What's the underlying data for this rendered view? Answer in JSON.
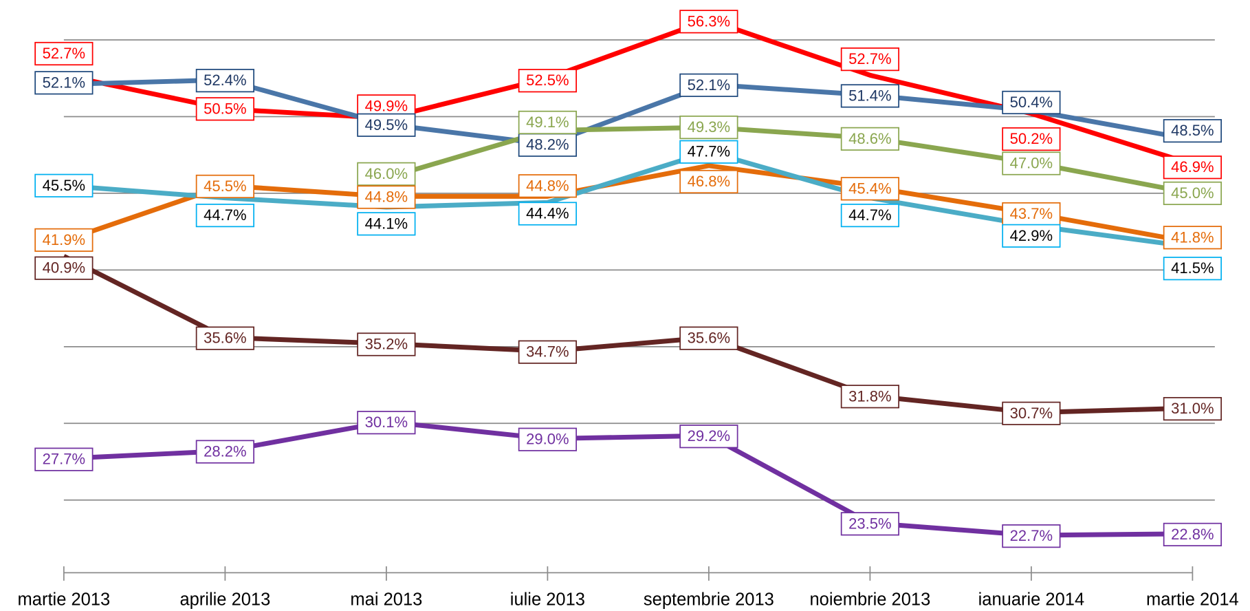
{
  "chart_data": {
    "type": "line",
    "categories": [
      "martie 2013",
      "aprilie 2013",
      "mai 2013",
      "iulie 2013",
      "septembrie 2013",
      "noiembrie 2013",
      "ianuarie 2014",
      "martie 2014"
    ],
    "ylim": [
      20,
      57.5
    ],
    "yticks": [
      20,
      25,
      30,
      35,
      40,
      45,
      50,
      55
    ],
    "grid": true,
    "series": [
      {
        "color": "#ff0000",
        "values": [
          52.7,
          50.5,
          49.9,
          52.5,
          56.3,
          52.7,
          50.2,
          46.9
        ],
        "value_labels": [
          "52.7%",
          "50.5%",
          "49.9%",
          "52.5%",
          "56.3%",
          "52.7%",
          "50.2%",
          "46.9%"
        ]
      },
      {
        "color": "#4a76a8",
        "values": [
          52.1,
          52.4,
          49.5,
          48.2,
          52.1,
          51.4,
          50.4,
          48.5
        ],
        "value_labels": [
          "52.1%",
          "52.4%",
          "49.5%",
          "48.2%",
          "52.1%",
          "51.4%",
          "50.4%",
          "48.5%"
        ]
      },
      {
        "color": "#8aa64f",
        "values": [
          null,
          null,
          46.0,
          49.1,
          49.3,
          48.6,
          47.0,
          45.0
        ],
        "value_labels": [
          null,
          null,
          "46.0%",
          "49.1%",
          "49.3%",
          "48.6%",
          "47.0%",
          "45.0%"
        ]
      },
      {
        "color": "#e46c0a",
        "values": [
          41.9,
          45.5,
          44.8,
          44.8,
          46.8,
          45.4,
          43.7,
          41.8
        ],
        "value_labels": [
          "41.9%",
          "45.5%",
          "44.8%",
          "44.8%",
          "46.8%",
          "45.4%",
          "43.7%",
          "41.8%"
        ]
      },
      {
        "color": "#4bacc6",
        "values": [
          45.5,
          44.7,
          44.1,
          44.4,
          47.7,
          44.7,
          42.9,
          41.5
        ],
        "value_labels": [
          "45.5%",
          "44.7%",
          "44.1%",
          "44.4%",
          "47.7%",
          "44.7%",
          "42.9%",
          "41.5%"
        ]
      },
      {
        "color": "#632523",
        "values": [
          40.9,
          35.6,
          35.2,
          34.7,
          35.6,
          31.8,
          30.7,
          31.0
        ],
        "value_labels": [
          "40.9%",
          "35.6%",
          "35.2%",
          "34.7%",
          "35.6%",
          "31.8%",
          "30.7%",
          "31.0%"
        ]
      },
      {
        "color": "#7030a0",
        "values": [
          27.7,
          28.2,
          30.1,
          29.0,
          29.2,
          23.5,
          22.7,
          22.8
        ],
        "value_labels": [
          "27.7%",
          "28.2%",
          "30.1%",
          "29.0%",
          "29.2%",
          "23.5%",
          "22.7%",
          "22.8%"
        ]
      }
    ]
  }
}
